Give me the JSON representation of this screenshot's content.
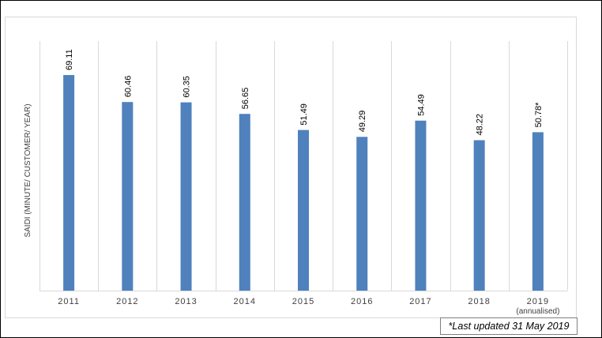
{
  "chart_data": {
    "type": "bar",
    "categories": [
      "2011",
      "2012",
      "2013",
      "2014",
      "2015",
      "2016",
      "2017",
      "2018",
      "2019"
    ],
    "category_sublabels": [
      "",
      "",
      "",
      "",
      "",
      "",
      "",
      "",
      "(annualised)"
    ],
    "values": [
      69.11,
      60.46,
      60.35,
      56.65,
      51.49,
      49.29,
      54.49,
      48.22,
      50.78
    ],
    "data_labels": [
      "69.11",
      "60.46",
      "60.35",
      "56.65",
      "51.49",
      "49.29",
      "54.49",
      "48.22",
      "50.78*"
    ],
    "ylabel": "SAIDI (MINUTE/ CUSTOMER/ YEAR)",
    "ylim": [
      0,
      75
    ],
    "bar_color": "#4f81bd",
    "grid": "vertical-category-separators",
    "legend": "none"
  },
  "footnote": "*Last updated 31 May 2019"
}
